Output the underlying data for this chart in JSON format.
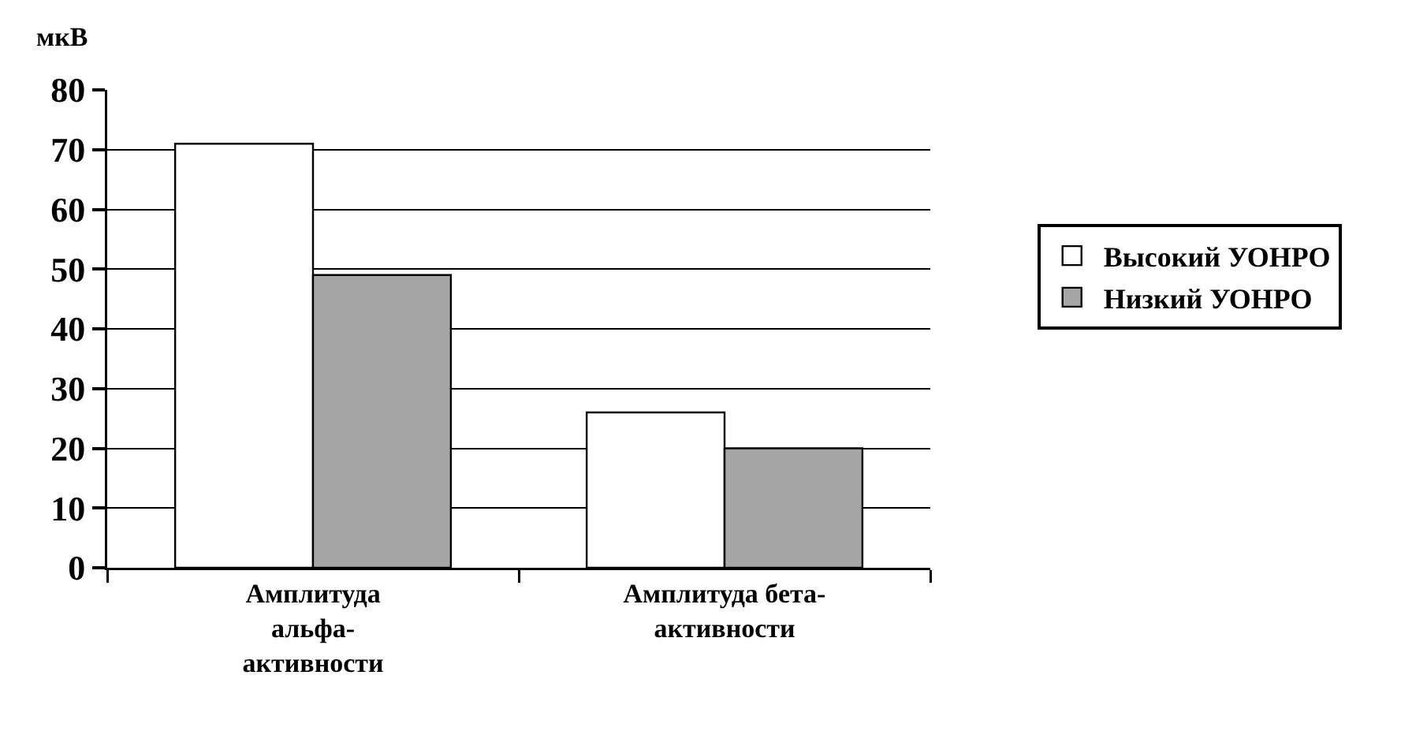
{
  "chart_data": {
    "type": "bar",
    "ylabel": "мкВ",
    "categories": [
      "Амплитуда альфа-активности",
      "Амплитуда бета-активности"
    ],
    "series": [
      {
        "name": "Высокий УОНРО",
        "color": "#ffffff",
        "values": [
          71,
          26
        ]
      },
      {
        "name": "Низкий УОНРО",
        "color": "#a6a6a6",
        "values": [
          49,
          20
        ]
      }
    ],
    "ylim": [
      0,
      80
    ],
    "yticks": [
      0,
      10,
      20,
      30,
      40,
      50,
      60,
      70,
      80
    ],
    "grid": "y",
    "legend": "right"
  }
}
